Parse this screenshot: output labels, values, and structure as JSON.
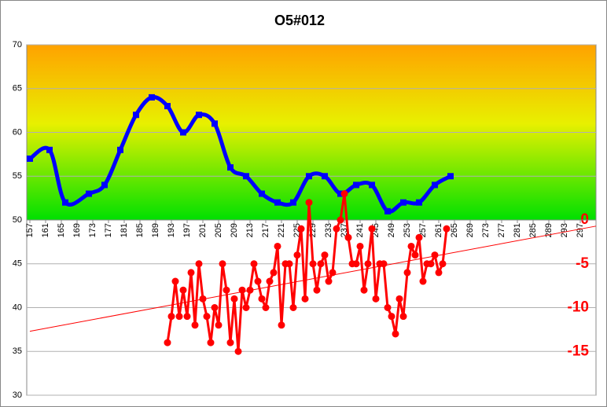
{
  "chart_data": {
    "type": "line",
    "title": "O5#012",
    "xlim": [
      156.2,
      301
    ],
    "xticks": [
      157,
      161,
      165,
      169,
      173,
      177,
      181,
      185,
      189,
      193,
      197,
      201,
      205,
      209,
      213,
      217,
      221,
      225,
      229,
      233,
      237,
      241,
      245,
      249,
      253,
      257,
      261,
      265,
      269,
      273,
      277,
      281,
      285,
      289,
      293,
      297
    ],
    "ylim": [
      30,
      70
    ],
    "yticks": [
      30,
      35,
      40,
      45,
      50,
      55,
      60,
      65,
      70
    ],
    "y2lim": [
      -20,
      20
    ],
    "y2ticks": [
      0,
      -5,
      -10,
      -15
    ],
    "x_axis_at": 50,
    "gradient_band": [
      50,
      70
    ],
    "grid": true,
    "series": [
      {
        "color": "#0000ff",
        "x": [
          157,
          162,
          166,
          172,
          176,
          180,
          184,
          188,
          192,
          196,
          200,
          204,
          208,
          212,
          216,
          220,
          224,
          228,
          232,
          236,
          240,
          244,
          248,
          252,
          256,
          260,
          264
        ],
        "values": [
          57,
          58,
          52,
          53,
          54,
          58,
          62,
          64,
          63,
          60,
          62,
          61,
          56,
          55,
          53,
          52,
          52,
          55,
          55,
          53,
          54,
          54,
          51,
          52,
          52,
          54,
          55
        ]
      },
      {
        "color": "#ff0000",
        "axis": "y2",
        "x": [
          192,
          193,
          194,
          195,
          196,
          197,
          198,
          199,
          200,
          201,
          202,
          203,
          204,
          205,
          206,
          207,
          208,
          209,
          210,
          211,
          212,
          213,
          214,
          215,
          216,
          217,
          218,
          219,
          220,
          221,
          222,
          223,
          224,
          225,
          226,
          227,
          228,
          229,
          230,
          231,
          232,
          233,
          234,
          235,
          236,
          237,
          238,
          239,
          240,
          241,
          242,
          243,
          244,
          245,
          246,
          247,
          248,
          249,
          250,
          251,
          252,
          253,
          254,
          255,
          256,
          257,
          258,
          259,
          260,
          261,
          262,
          263
        ],
        "values": [
          -14,
          -11,
          -7,
          -11,
          -8,
          -11,
          -6,
          -12,
          -5,
          -9,
          -11,
          -14,
          -10,
          -12,
          -5,
          -8,
          -14,
          -9,
          -15,
          -8,
          -10,
          -8,
          -5,
          -7,
          -9,
          -10,
          -7,
          -6,
          -3,
          -12,
          -5,
          -5,
          -10,
          -4,
          -1,
          -9,
          2,
          -5,
          -8,
          -5,
          -4,
          -7,
          -6,
          -1,
          0,
          3,
          -2,
          -5,
          -5,
          -3,
          -8,
          -5,
          -1,
          -9,
          -5,
          -5,
          -10,
          -11,
          -13,
          -9,
          -11,
          -6,
          -3,
          -4,
          -2,
          -7,
          -5,
          -5,
          -4,
          -6,
          -5,
          -1
        ]
      }
    ],
    "trendline": {
      "color": "#ff0000",
      "axis": "y2",
      "x": [
        157,
        301
      ],
      "values": [
        -12.7,
        -0.7
      ]
    }
  }
}
